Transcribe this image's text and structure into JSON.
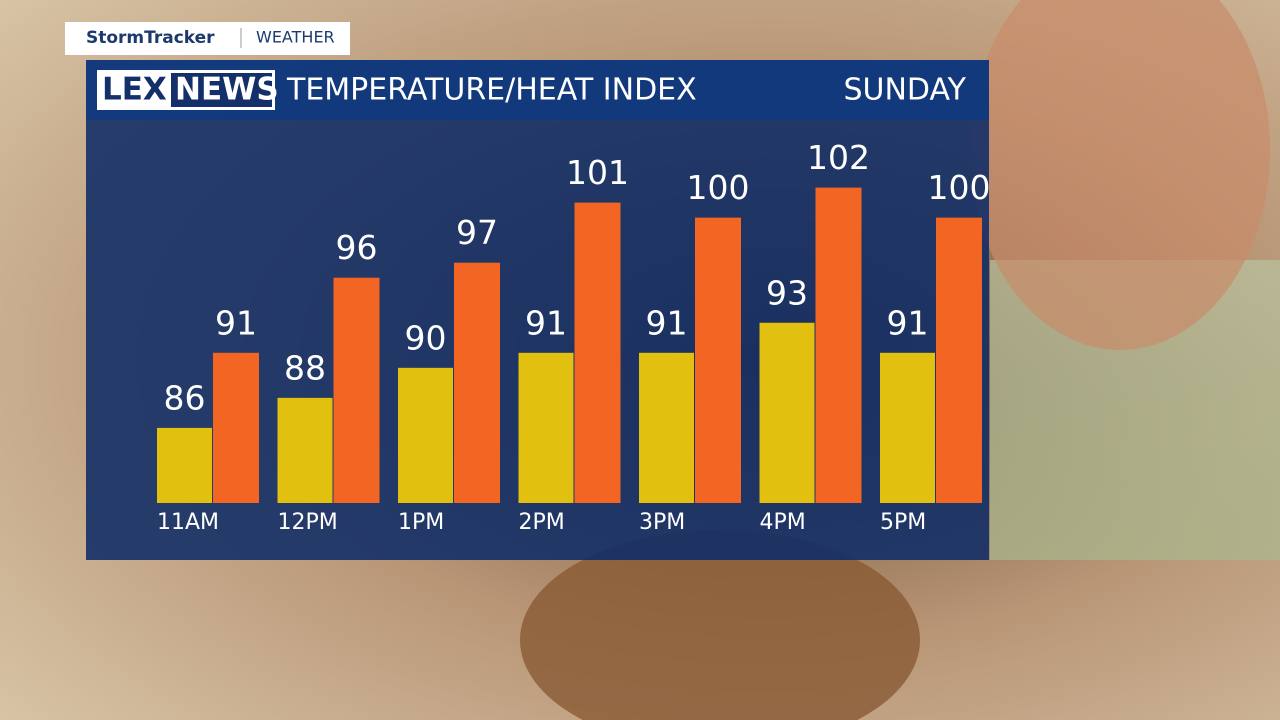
{
  "branding": {
    "brand": "StormTracker",
    "section": "WEATHER",
    "logo_left": "LEX",
    "logo_right": "NEWS"
  },
  "chart_data": {
    "type": "bar",
    "title": "TEMPERATURE/HEAT INDEX",
    "subtitle": "SUNDAY",
    "categories": [
      "11AM",
      "12PM",
      "1PM",
      "2PM",
      "3PM",
      "4PM",
      "5PM"
    ],
    "series": [
      {
        "color": "#e2c00f",
        "values": [
          86,
          88,
          90,
          91,
          91,
          93,
          91
        ]
      },
      {
        "color": "#f26522",
        "values": [
          91,
          96,
          97,
          101,
          100,
          102,
          100
        ]
      }
    ],
    "ylim": [
      81,
      106.5
    ]
  }
}
